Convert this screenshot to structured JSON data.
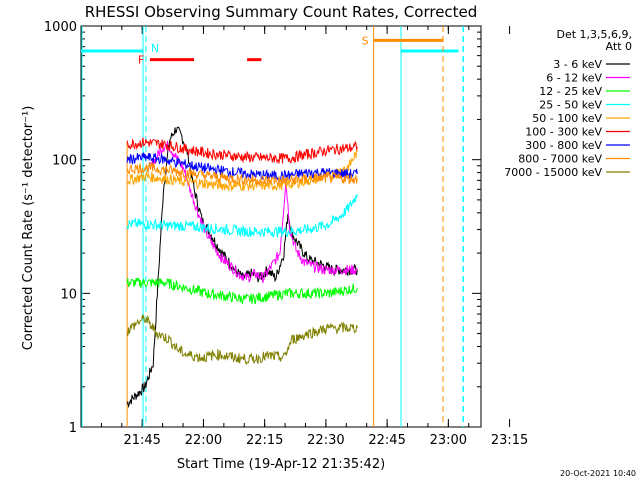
{
  "chart_data": {
    "type": "line",
    "title": "RHESSI Observing Summary Count Rates, Corrected",
    "ylabel": "Corrected Count Rate (s⁻¹ detector⁻¹)",
    "xlabel": "Start Time (19-Apr-12 21:35:42)",
    "yscale": "log",
    "ylim": [
      1,
      1000
    ],
    "xlim_min": [
      -5.7,
      92.3
    ],
    "x_ticks": [
      {
        "m": 9.3,
        "label": "21:45"
      },
      {
        "m": 24.3,
        "label": "22:00"
      },
      {
        "m": 39.3,
        "label": "22:15"
      },
      {
        "m": 54.3,
        "label": "22:30"
      },
      {
        "m": 69.3,
        "label": "22:45"
      },
      {
        "m": 84.3,
        "label": "23:00"
      },
      {
        "m": 99.3,
        "label": "23:15"
      }
    ],
    "y_ticks": [
      {
        "v": 1,
        "label": "1"
      },
      {
        "v": 10,
        "label": "10"
      },
      {
        "v": 100,
        "label": "100"
      },
      {
        "v": 1000,
        "label": "1000"
      }
    ],
    "legend_header": [
      "Det 1,3,5,6,9,",
      "Att 0"
    ],
    "series": [
      {
        "name": "3 - 6 keV",
        "color": "#000000",
        "points": [
          [
            5.6,
            1.5
          ],
          [
            10,
            2
          ],
          [
            12,
            3
          ],
          [
            14.5,
            60
          ],
          [
            16,
            140
          ],
          [
            17.5,
            170
          ],
          [
            19,
            150
          ],
          [
            20.5,
            110
          ],
          [
            22,
            60
          ],
          [
            24,
            35
          ],
          [
            26,
            28
          ],
          [
            28,
            22
          ],
          [
            30,
            18
          ],
          [
            32,
            15
          ],
          [
            34,
            13
          ],
          [
            36,
            14
          ],
          [
            38,
            13
          ],
          [
            40,
            15
          ],
          [
            42,
            13
          ],
          [
            44,
            20
          ],
          [
            45,
            40
          ],
          [
            46,
            28
          ],
          [
            48,
            22
          ],
          [
            50,
            18
          ],
          [
            52,
            17
          ],
          [
            54,
            16
          ],
          [
            56,
            15
          ],
          [
            58,
            15
          ],
          [
            62,
            15
          ]
        ]
      },
      {
        "name": "6 - 12 keV",
        "color": "#ff00ff",
        "points": [
          [
            11,
            85
          ],
          [
            12,
            95
          ],
          [
            14,
            120
          ],
          [
            15,
            130
          ],
          [
            16,
            125
          ],
          [
            18,
            100
          ],
          [
            19.5,
            85
          ],
          [
            21,
            60
          ],
          [
            23,
            40
          ],
          [
            25,
            28
          ],
          [
            27,
            22
          ],
          [
            29,
            18
          ],
          [
            31,
            16
          ],
          [
            33,
            14
          ],
          [
            35,
            13
          ],
          [
            37,
            14
          ],
          [
            39,
            13
          ],
          [
            41,
            16
          ],
          [
            43,
            20
          ],
          [
            44.5,
            70
          ],
          [
            45.5,
            30
          ],
          [
            47,
            21
          ],
          [
            49,
            17
          ],
          [
            51,
            16
          ],
          [
            54,
            15
          ],
          [
            58,
            15
          ],
          [
            62,
            15
          ]
        ]
      },
      {
        "name": "12 - 25 keV",
        "color": "#00ff00",
        "points": [
          [
            5.6,
            12
          ],
          [
            10,
            12
          ],
          [
            15,
            12
          ],
          [
            20,
            11
          ],
          [
            25,
            10
          ],
          [
            30,
            9.5
          ],
          [
            35,
            9
          ],
          [
            40,
            9.5
          ],
          [
            45,
            10
          ],
          [
            50,
            10
          ],
          [
            55,
            10
          ],
          [
            62,
            11
          ]
        ]
      },
      {
        "name": "25 - 50 keV",
        "color": "#00ffff",
        "points": [
          [
            5.6,
            33
          ],
          [
            10,
            33
          ],
          [
            15,
            32
          ],
          [
            20,
            32
          ],
          [
            25,
            31
          ],
          [
            30,
            30
          ],
          [
            35,
            29
          ],
          [
            40,
            29
          ],
          [
            45,
            29
          ],
          [
            50,
            30
          ],
          [
            55,
            33
          ],
          [
            58,
            38
          ],
          [
            60,
            44
          ],
          [
            62,
            55
          ]
        ]
      },
      {
        "name": "50 - 100 keV",
        "color": "#ffa500",
        "points": [
          [
            5.6,
            70
          ],
          [
            10,
            75
          ],
          [
            15,
            72
          ],
          [
            20,
            68
          ],
          [
            25,
            66
          ],
          [
            30,
            64
          ],
          [
            35,
            64
          ],
          [
            40,
            64
          ],
          [
            45,
            65
          ],
          [
            50,
            70
          ],
          [
            55,
            75
          ],
          [
            60,
            90
          ],
          [
            62,
            115
          ]
        ]
      },
      {
        "name": "100 - 300 keV",
        "color": "#ff0000",
        "points": [
          [
            5.6,
            130
          ],
          [
            10,
            135
          ],
          [
            15,
            130
          ],
          [
            20,
            120
          ],
          [
            25,
            112
          ],
          [
            30,
            108
          ],
          [
            35,
            104
          ],
          [
            40,
            103
          ],
          [
            45,
            102
          ],
          [
            50,
            110
          ],
          [
            55,
            118
          ],
          [
            60,
            122
          ],
          [
            62,
            125
          ]
        ]
      },
      {
        "name": "300 - 800 keV",
        "color": "#0000ff",
        "points": [
          [
            5.6,
            100
          ],
          [
            10,
            104
          ],
          [
            15,
            100
          ],
          [
            20,
            92
          ],
          [
            25,
            86
          ],
          [
            30,
            82
          ],
          [
            35,
            78
          ],
          [
            40,
            76
          ],
          [
            45,
            76
          ],
          [
            50,
            80
          ],
          [
            55,
            80
          ],
          [
            60,
            78
          ],
          [
            62,
            78
          ]
        ]
      },
      {
        "name": "800 - 7000 keV",
        "color": "#ff8c00",
        "points": [
          [
            5.6,
            85
          ],
          [
            10,
            87
          ],
          [
            15,
            84
          ],
          [
            20,
            80
          ],
          [
            25,
            76
          ],
          [
            30,
            73
          ],
          [
            35,
            71
          ],
          [
            40,
            70
          ],
          [
            45,
            70
          ],
          [
            50,
            72
          ],
          [
            55,
            73
          ],
          [
            60,
            72
          ],
          [
            62,
            72
          ]
        ]
      },
      {
        "name": "7000 - 15000 keV",
        "color": "#808000",
        "points": [
          [
            5.6,
            5.2
          ],
          [
            8,
            6
          ],
          [
            10,
            6.5
          ],
          [
            13,
            5
          ],
          [
            16,
            4.5
          ],
          [
            18,
            3.8
          ],
          [
            20,
            3.5
          ],
          [
            24,
            3.3
          ],
          [
            28,
            3.5
          ],
          [
            32,
            3.3
          ],
          [
            36,
            3.2
          ],
          [
            40,
            3.4
          ],
          [
            44,
            3.3
          ],
          [
            46,
            4.5
          ],
          [
            50,
            5
          ],
          [
            55,
            5.5
          ],
          [
            60,
            5.5
          ],
          [
            62,
            5.5
          ]
        ]
      }
    ],
    "annotations": {
      "night_level": 650,
      "night_segments": [
        [
          -5.7,
          9.5
        ],
        [
          72.7,
          86.8
        ]
      ],
      "night_vlines_solid": [
        9.5,
        72.7
      ],
      "night_vlines_dashed": [
        10.2,
        88
      ],
      "night_label": "N",
      "flare_label": "F",
      "flare_level": 560,
      "flare_segments": [
        [
          11.2,
          22
        ],
        [
          35,
          38.5
        ]
      ],
      "saa_label": "S",
      "saa_level": 780,
      "saa_segment": [
        66,
        83
      ],
      "saa_vline_solid": 66,
      "saa_vline_dashed": 83,
      "series_start_vline": 5.6
    },
    "grid": false,
    "legend": "top-right"
  },
  "footer": {
    "timestamp": "20-Oct-2021 10:40"
  }
}
